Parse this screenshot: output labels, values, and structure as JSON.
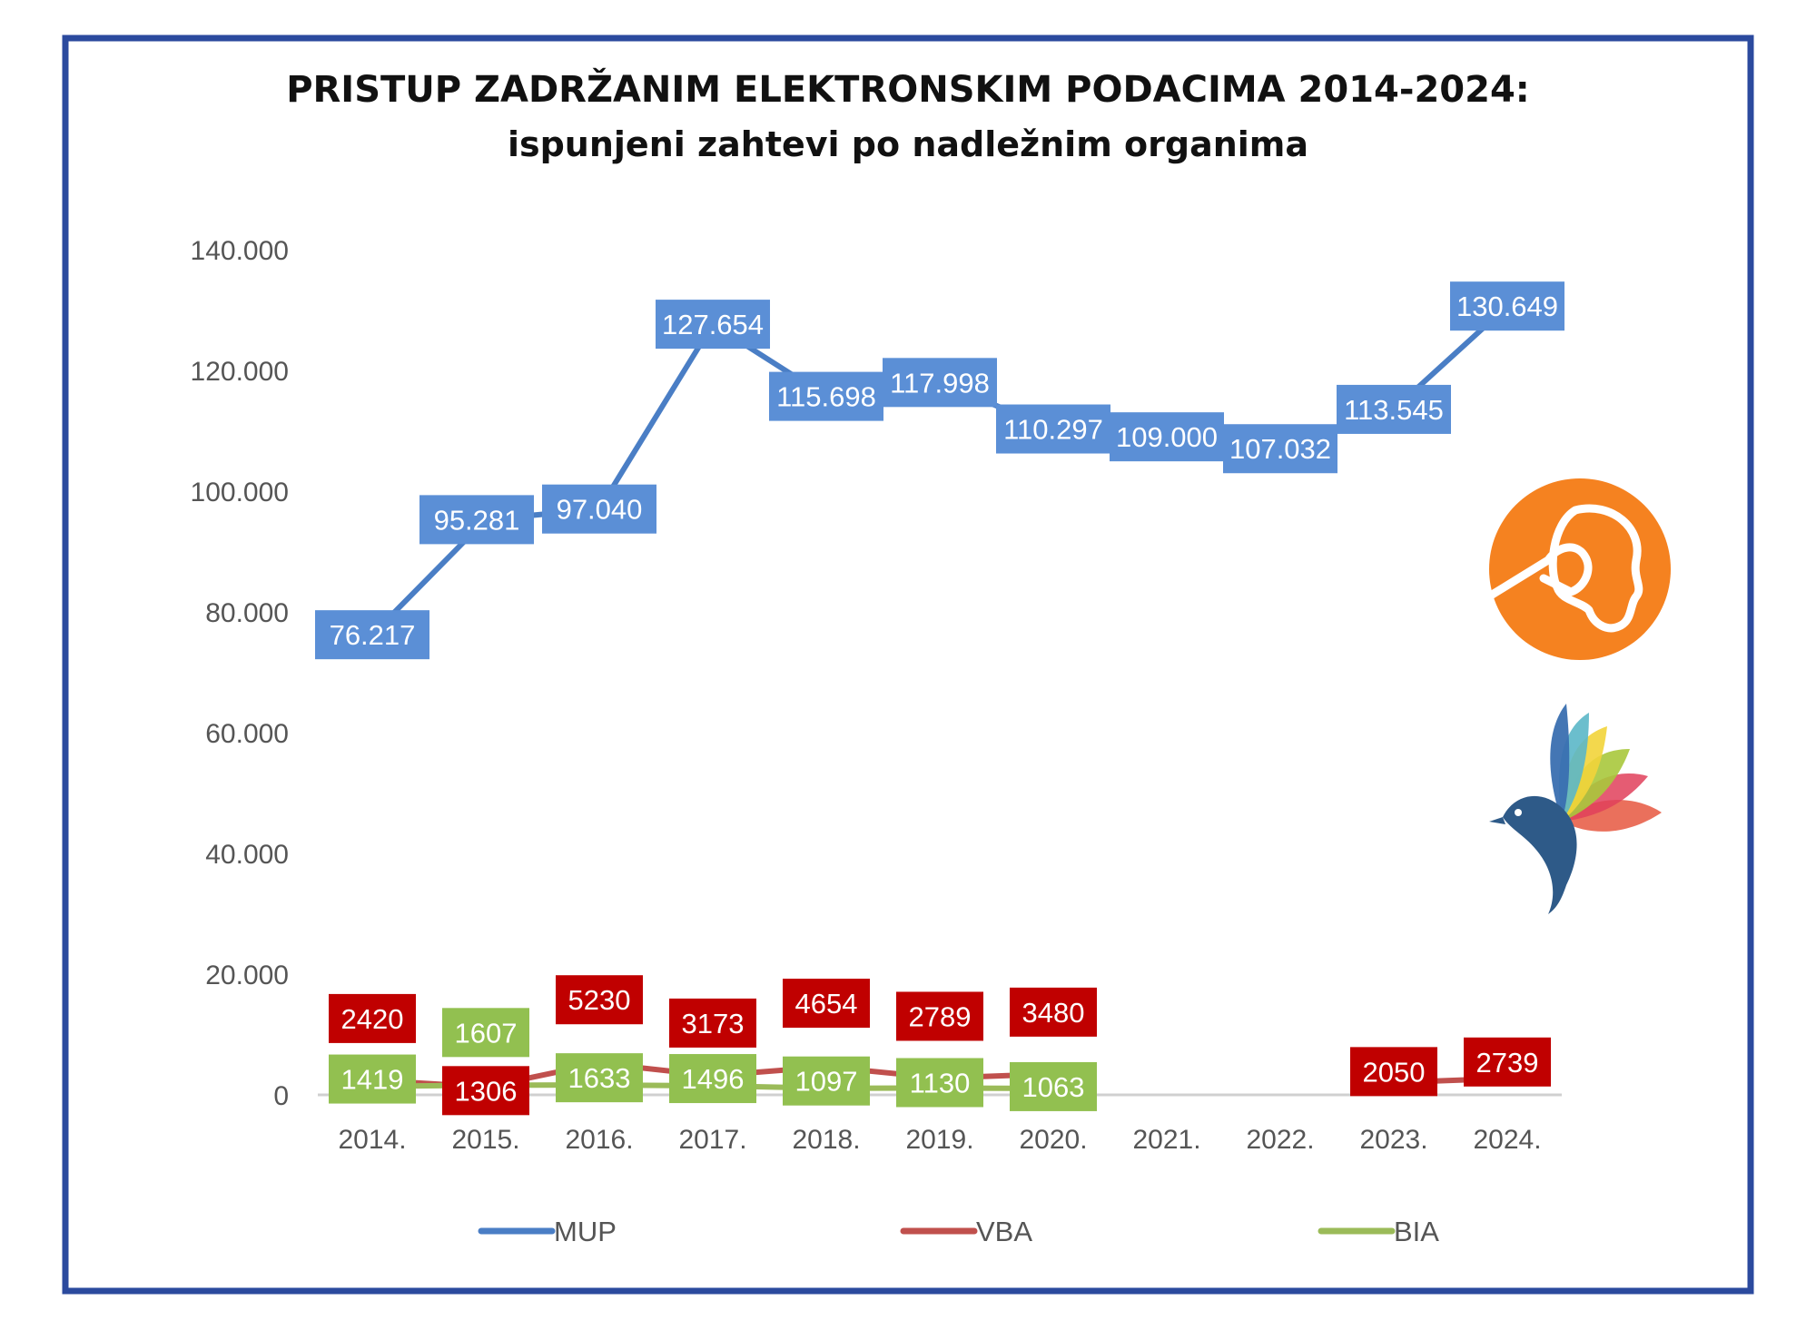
{
  "chart_data": {
    "type": "line",
    "title": "PRISTUP ZADRŽANIM ELEKTRONSKIM PODACIMA 2014-2024:",
    "subtitle": "ispunjeni zahtevi po nadležnim organima",
    "categories": [
      "2014.",
      "2015.",
      "2016.",
      "2017.",
      "2018.",
      "2019.",
      "2020.",
      "2021.",
      "2022.",
      "2023.",
      "2024."
    ],
    "ylim": [
      0,
      140000
    ],
    "yticks": [
      0,
      20000,
      40000,
      60000,
      80000,
      100000,
      120000,
      140000
    ],
    "ytick_labels": [
      "0",
      "20.000",
      "40.000",
      "60.000",
      "80.000",
      "100.000",
      "120.000",
      "140.000"
    ],
    "grid": false,
    "legend_position": "bottom",
    "series": [
      {
        "name": "MUP",
        "color": "#4a7ec5",
        "values": [
          76217,
          95281,
          97040,
          127654,
          115698,
          117998,
          110297,
          109000,
          107032,
          113545,
          130649
        ],
        "labels": [
          "76.217",
          "95.281",
          "97.040",
          "127.654",
          "115.698",
          "117.998",
          "110.297",
          "109.000",
          "107.032",
          "113.545",
          "130.649"
        ],
        "label_bg": "#5b8fd6"
      },
      {
        "name": "VBA",
        "color": "#c0504d",
        "values": [
          2420,
          1306,
          5230,
          3173,
          4654,
          2789,
          3480,
          null,
          null,
          2050,
          2739
        ],
        "labels": [
          "2420",
          "1306",
          "5230",
          "3173",
          "4654",
          "2789",
          "3480",
          "",
          "",
          "2050",
          "2739"
        ],
        "label_bg": "#c00000"
      },
      {
        "name": "BIA",
        "color": "#9bbb59",
        "values": [
          1419,
          1607,
          1633,
          1496,
          1097,
          1130,
          1063,
          null,
          null,
          null,
          null
        ],
        "labels": [
          "1419",
          "1607",
          "1633",
          "1496",
          "1097",
          "1130",
          "1063",
          "",
          "",
          "",
          ""
        ],
        "label_bg": "#92c050"
      }
    ]
  },
  "logos": {
    "orange_logo_color": "#f58220",
    "bird_logo_color": "#2e5a88"
  },
  "frame_color": "#2b4a9e"
}
